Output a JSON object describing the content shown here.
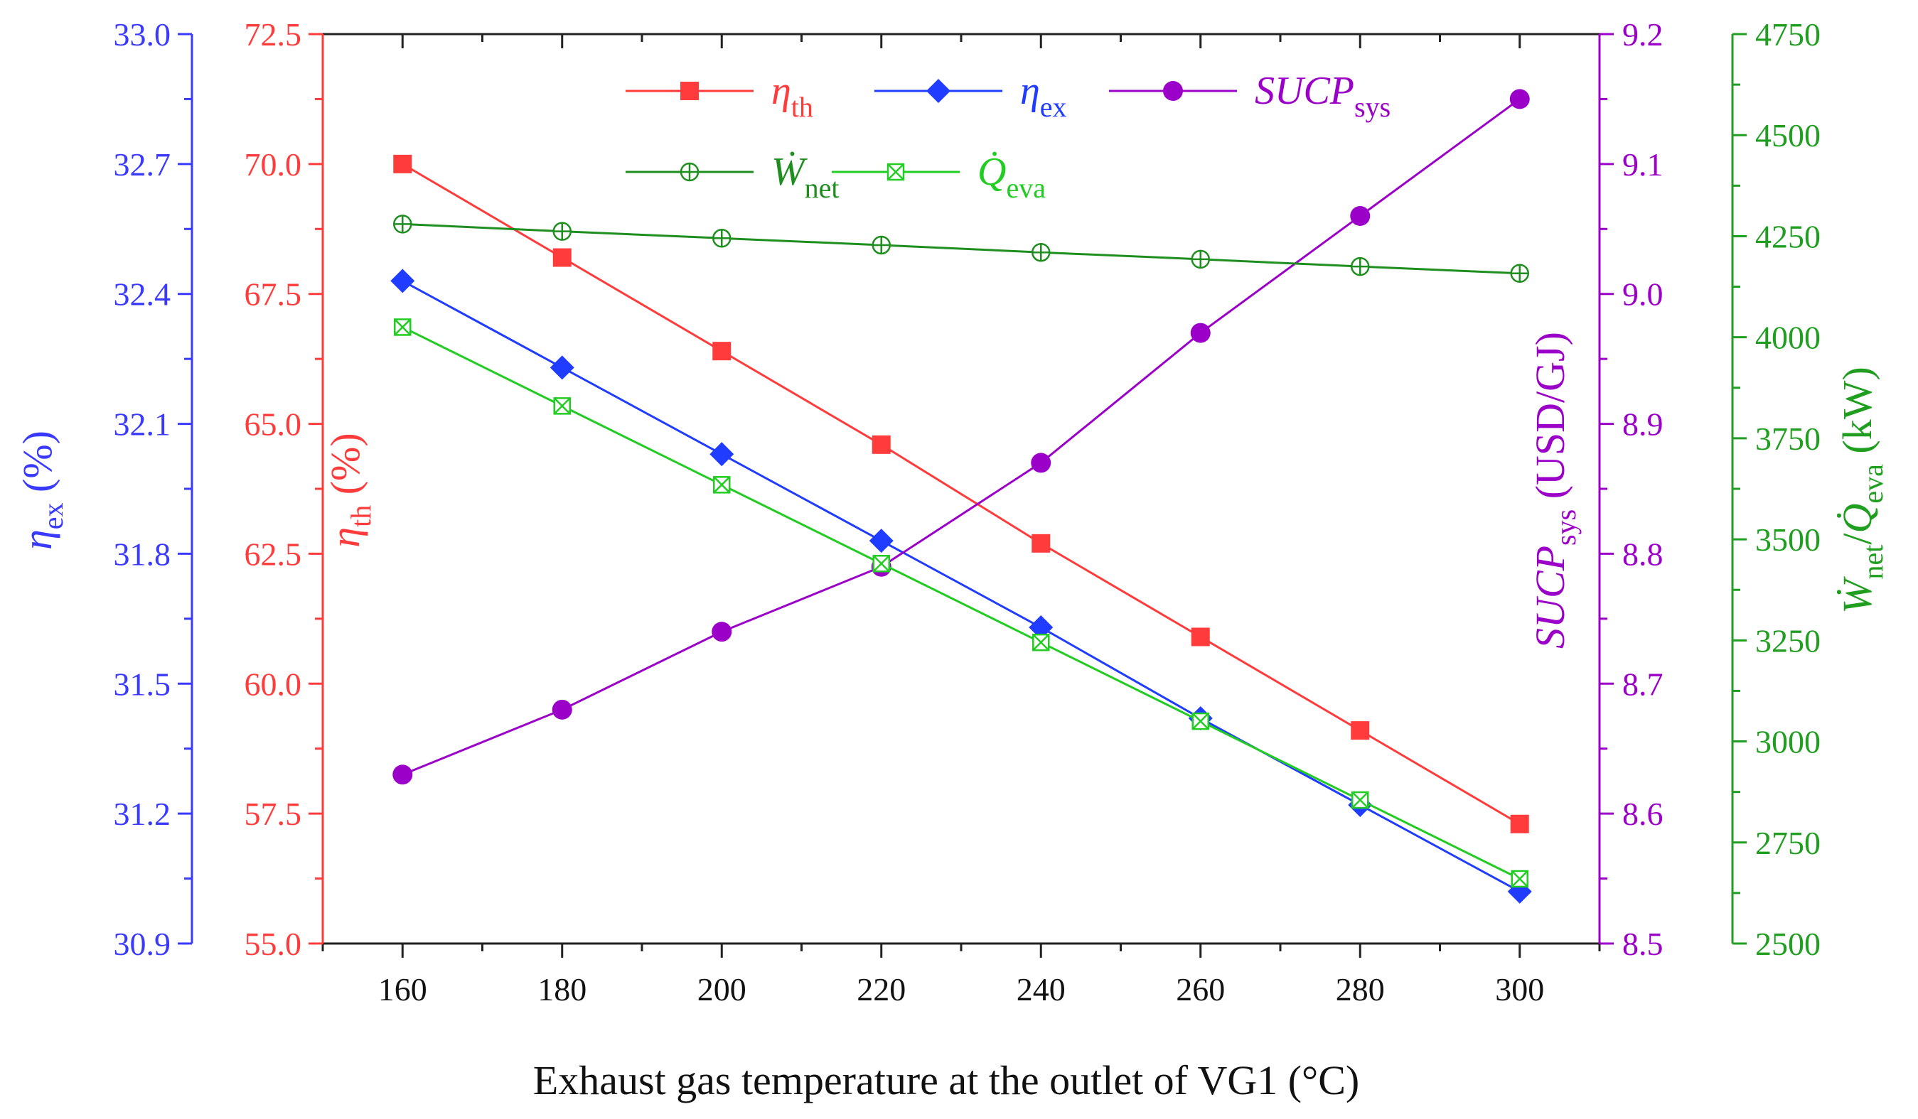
{
  "chart_data": {
    "type": "line",
    "xlabel": "Exhaust gas temperature at the outlet of VG1 (°C)",
    "x": [
      160,
      180,
      200,
      220,
      240,
      260,
      280,
      300
    ],
    "xlim": [
      150,
      310
    ],
    "xticks": [
      "160",
      "180",
      "200",
      "220",
      "240",
      "260",
      "280",
      "300"
    ],
    "axes": {
      "eta_ex": {
        "label_main": "η",
        "label_sub": "ex",
        "label_unit": " (%)",
        "color": "#3a3aff",
        "ylim": [
          30.9,
          33.0
        ],
        "ticks": [
          "30.9",
          "31.2",
          "31.5",
          "31.8",
          "32.1",
          "32.4",
          "32.7",
          "33.0"
        ]
      },
      "eta_th": {
        "label_main": "η",
        "label_sub": "th",
        "label_unit": " (%)",
        "color": "#ff3b3b",
        "ylim": [
          55.0,
          72.5
        ],
        "ticks": [
          "55.0",
          "57.5",
          "60.0",
          "62.5",
          "65.0",
          "67.5",
          "70.0",
          "72.5"
        ]
      },
      "sucp": {
        "label_main": "SUCP",
        "label_sub": "sys",
        "label_unit": " (USD/GJ)",
        "color": "#9b00c8",
        "ylim": [
          8.5,
          9.2
        ],
        "ticks": [
          "8.5",
          "8.6",
          "8.7",
          "8.8",
          "8.9",
          "9.0",
          "9.1",
          "9.2"
        ]
      },
      "power": {
        "label_main": "Ẇ",
        "label_sub": "net",
        "label_sep": "/",
        "label_main2": "Q̇",
        "label_sub2": "eva",
        "label_unit": " (kW)",
        "color": "#1f9e1f",
        "ylim": [
          2500,
          4750
        ],
        "ticks": [
          "2500",
          "2750",
          "3000",
          "3250",
          "3500",
          "3750",
          "4000",
          "4250",
          "4500",
          "4750"
        ]
      }
    },
    "series": [
      {
        "name": "η_th",
        "legend_main": "η",
        "legend_sub": "th",
        "axis": "eta_th",
        "color": "#ff3b3b",
        "marker": "square",
        "values": [
          70.0,
          68.2,
          66.4,
          64.6,
          62.7,
          60.9,
          59.1,
          57.3
        ]
      },
      {
        "name": "η_ex",
        "legend_main": "η",
        "legend_sub": "ex",
        "axis": "eta_ex",
        "color": "#1f3cff",
        "marker": "diamond",
        "values": [
          32.43,
          32.23,
          32.03,
          31.83,
          31.63,
          31.42,
          31.22,
          31.02
        ]
      },
      {
        "name": "SUCP_sys",
        "legend_main": "SUCP",
        "legend_sub": "sys",
        "axis": "sucp",
        "color": "#9b00c8",
        "marker": "circle",
        "values": [
          8.63,
          8.68,
          8.74,
          8.79,
          8.87,
          8.97,
          9.06,
          9.15
        ]
      },
      {
        "name": "W_net",
        "legend_main": "Ẇ",
        "legend_sub": "net",
        "axis": "power",
        "color": "#1e8e1e",
        "marker": "circle-plus",
        "values": [
          4280,
          4262,
          4245,
          4228,
          4210,
          4193,
          4175,
          4158
        ]
      },
      {
        "name": "Q_eva",
        "legend_main": "Q̇",
        "legend_sub": "eva",
        "axis": "power",
        "color": "#22cc22",
        "marker": "square-x",
        "values": [
          4025,
          3830,
          3635,
          3440,
          3245,
          3050,
          2855,
          2660
        ]
      }
    ]
  }
}
